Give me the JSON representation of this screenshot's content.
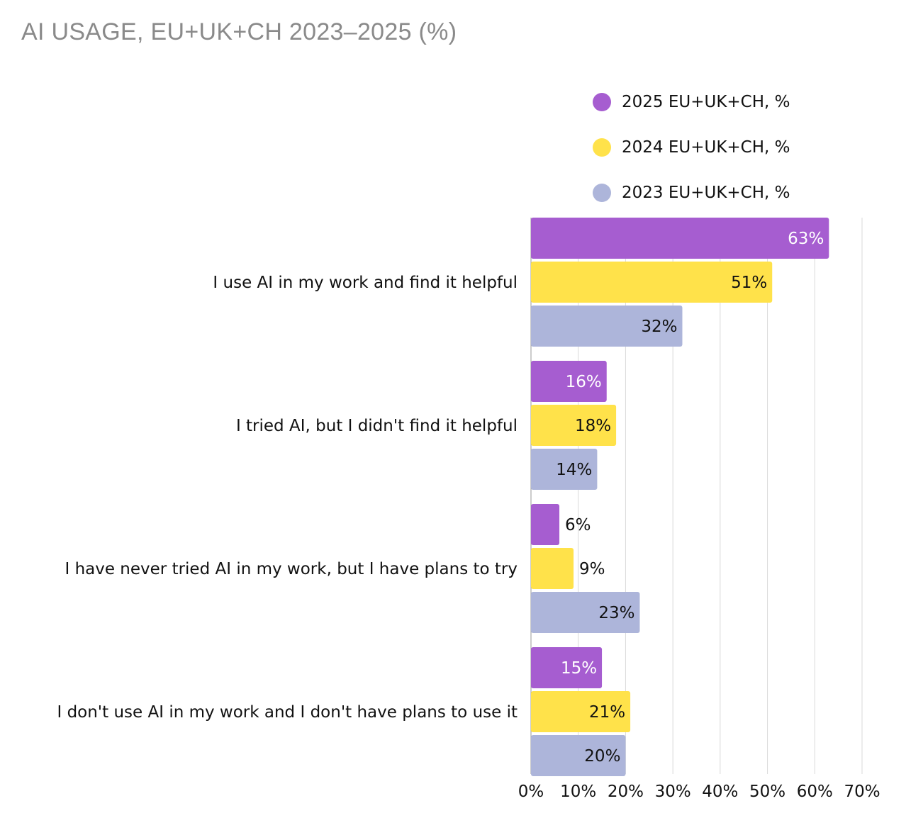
{
  "chart_data": {
    "type": "bar",
    "orientation": "horizontal",
    "title": "AI USAGE, EU+UK+CH 2023–2025 (%)",
    "categories": [
      "I use AI in my work and find it helpful",
      "I tried AI, but I didn't find it helpful",
      "I have never tried AI in my work, but I have plans to try",
      "I don't use AI in my work and I don't have plans to use it"
    ],
    "series": [
      {
        "name": "2025 EU+UK+CH, %",
        "color": "#a65dd0",
        "label_color": "#ffffff",
        "values": [
          63,
          16,
          6,
          15
        ],
        "labels": [
          "63%",
          "16%",
          "6%",
          "15%"
        ]
      },
      {
        "name": "2024 EU+UK+CH, %",
        "color": "#ffe24a",
        "label_color": "#111111",
        "values": [
          51,
          18,
          9,
          21
        ],
        "labels": [
          "51%",
          "18%",
          "9%",
          "21%"
        ]
      },
      {
        "name": "2023 EU+UK+CH, %",
        "color": "#adb5da",
        "label_color": "#111111",
        "values": [
          32,
          14,
          23,
          20
        ],
        "labels": [
          "32%",
          "14%",
          "23%",
          "20%"
        ]
      }
    ],
    "xlim": [
      0,
      70
    ],
    "x_ticks": [
      0,
      10,
      20,
      30,
      40,
      50,
      60,
      70
    ],
    "x_tick_labels": [
      "0%",
      "10%",
      "20%",
      "30%",
      "40%",
      "50%",
      "60%",
      "70%"
    ],
    "grid": "vertical",
    "legend_position": "top-right"
  }
}
